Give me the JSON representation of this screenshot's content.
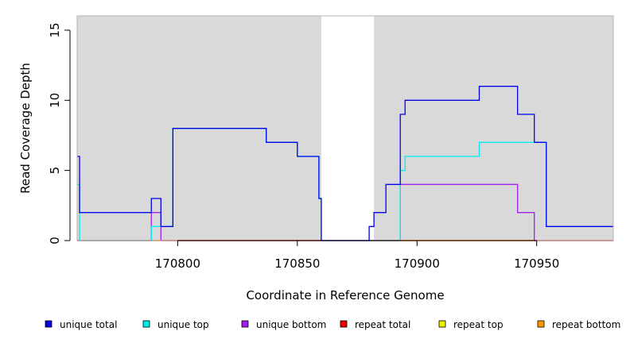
{
  "chart_data": {
    "type": "line",
    "step": true,
    "title": "",
    "xlabel": "Coordinate in Reference Genome",
    "ylabel": "Read Coverage Depth",
    "xlim": [
      170758,
      170982
    ],
    "ylim": [
      0,
      16
    ],
    "x_ticks": [
      170800,
      170850,
      170900,
      170950
    ],
    "y_ticks": [
      0,
      5,
      10,
      15
    ],
    "shaded_regions": [
      {
        "start": 170758,
        "end": 170860,
        "color": "#d9d9d9"
      },
      {
        "start": 170882,
        "end": 170982,
        "color": "#d9d9d9"
      }
    ],
    "series": [
      {
        "name": "unique total",
        "color": "#0000ee",
        "points": [
          [
            170758,
            6
          ],
          [
            170759,
            2
          ],
          [
            170789,
            3
          ],
          [
            170793,
            1
          ],
          [
            170798,
            8
          ],
          [
            170837,
            7
          ],
          [
            170850,
            6
          ],
          [
            170859,
            3
          ],
          [
            170860,
            0
          ],
          [
            170880,
            1
          ],
          [
            170882,
            2
          ],
          [
            170887,
            4
          ],
          [
            170893,
            9
          ],
          [
            170895,
            10
          ],
          [
            170926,
            11
          ],
          [
            170942,
            9
          ],
          [
            170949,
            7
          ],
          [
            170954,
            1
          ],
          [
            170982,
            1
          ]
        ]
      },
      {
        "name": "unique top",
        "color": "#00eeee",
        "points": [
          [
            170758,
            4
          ],
          [
            170759,
            0
          ],
          [
            170789,
            1
          ],
          [
            170793,
            1
          ],
          [
            170798,
            8
          ],
          [
            170837,
            7
          ],
          [
            170850,
            6
          ],
          [
            170859,
            3
          ],
          [
            170860,
            0
          ],
          [
            170882,
            0
          ],
          [
            170893,
            5
          ],
          [
            170895,
            6
          ],
          [
            170926,
            7
          ],
          [
            170954,
            1
          ],
          [
            170982,
            1
          ]
        ]
      },
      {
        "name": "unique bottom",
        "color": "#a020f0",
        "points": [
          [
            170758,
            0
          ],
          [
            170789,
            2
          ],
          [
            170793,
            0
          ],
          [
            170893,
            4
          ],
          [
            170942,
            2
          ],
          [
            170949,
            0
          ],
          [
            170982,
            0
          ]
        ]
      },
      {
        "name": "repeat total",
        "color": "#ee0000",
        "points": [
          [
            170758,
            0
          ],
          [
            170982,
            0
          ]
        ]
      },
      {
        "name": "repeat top",
        "color": "#eeee00",
        "points": [
          [
            170758,
            0
          ],
          [
            170982,
            0
          ]
        ]
      },
      {
        "name": "repeat bottom",
        "color": "#ff9900",
        "points": [
          [
            170758,
            0
          ],
          [
            170982,
            0
          ]
        ]
      }
    ],
    "legend": [
      {
        "label": "unique total",
        "color": "#0000ee"
      },
      {
        "label": "unique top",
        "color": "#00eeee"
      },
      {
        "label": "unique bottom",
        "color": "#a020f0"
      },
      {
        "label": "repeat total",
        "color": "#ee0000"
      },
      {
        "label": "repeat top",
        "color": "#eeee00"
      },
      {
        "label": "repeat bottom",
        "color": "#ff9900"
      }
    ],
    "legend_position": "bottom"
  }
}
